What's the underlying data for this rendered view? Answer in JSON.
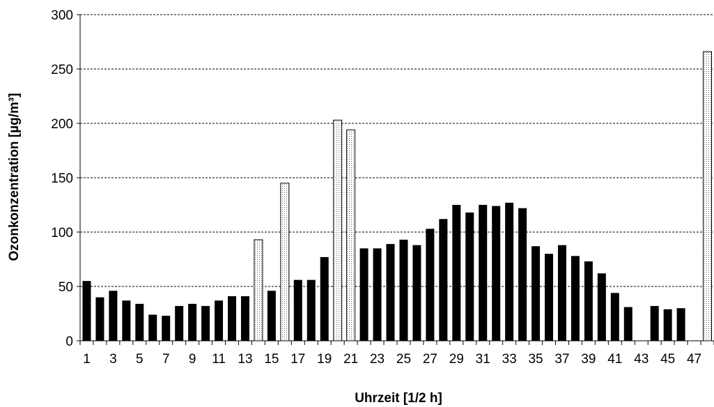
{
  "chart_data": {
    "type": "bar",
    "xlabel": "Uhrzeit [1/2 h]",
    "ylabel": "Ozonkonzentration [µg/m³]",
    "ylim": [
      0,
      300
    ],
    "yticks": [
      0,
      50,
      100,
      150,
      200,
      250,
      300
    ],
    "grid": "horizontal dashed",
    "x": [
      1,
      2,
      3,
      4,
      5,
      6,
      7,
      8,
      9,
      10,
      11,
      12,
      13,
      14,
      15,
      16,
      17,
      18,
      19,
      20,
      21,
      22,
      23,
      24,
      25,
      26,
      27,
      28,
      29,
      30,
      31,
      32,
      33,
      34,
      35,
      36,
      37,
      38,
      39,
      40,
      41,
      42,
      43,
      44,
      45,
      46,
      47,
      48
    ],
    "x_tick_labels": [
      "1",
      "3",
      "5",
      "7",
      "9",
      "11",
      "13",
      "15",
      "17",
      "19",
      "21",
      "23",
      "25",
      "27",
      "29",
      "31",
      "33",
      "35",
      "37",
      "39",
      "41",
      "43",
      "45",
      "47"
    ],
    "values": [
      55,
      40,
      46,
      37,
      34,
      24,
      23,
      32,
      34,
      32,
      37,
      41,
      41,
      93,
      46,
      145,
      56,
      56,
      77,
      203,
      194,
      85,
      85,
      89,
      93,
      88,
      103,
      112,
      125,
      118,
      125,
      124,
      127,
      122,
      87,
      80,
      88,
      78,
      73,
      62,
      44,
      31,
      null,
      32,
      29,
      30,
      null,
      266
    ],
    "bar_style": [
      "solid",
      "solid",
      "solid",
      "solid",
      "solid",
      "solid",
      "solid",
      "solid",
      "solid",
      "solid",
      "solid",
      "solid",
      "solid",
      "dotted",
      "solid",
      "dotted",
      "solid",
      "solid",
      "solid",
      "dotted",
      "dotted",
      "solid",
      "solid",
      "solid",
      "solid",
      "solid",
      "solid",
      "solid",
      "solid",
      "solid",
      "solid",
      "solid",
      "solid",
      "solid",
      "solid",
      "solid",
      "solid",
      "solid",
      "solid",
      "solid",
      "solid",
      "solid",
      null,
      "solid",
      "solid",
      "solid",
      null,
      "dotted"
    ],
    "colors": {
      "solid": "#000000",
      "dotted_fill": "#eeeeee",
      "dotted_stroke": "#000000",
      "grid": "#000000"
    }
  }
}
